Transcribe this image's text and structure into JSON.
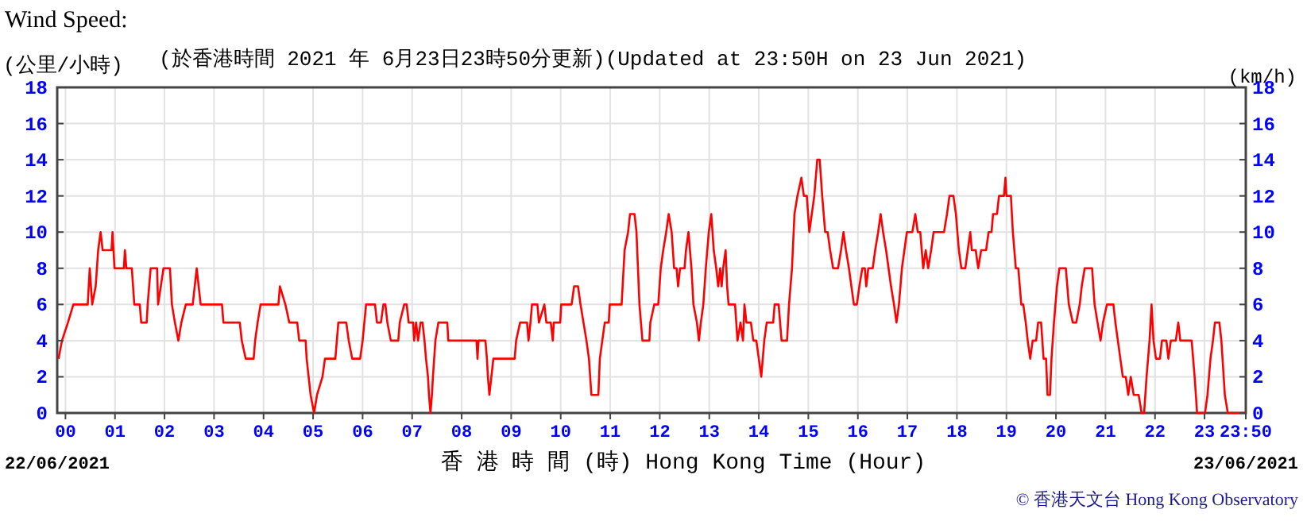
{
  "chart_data": {
    "type": "line",
    "title": "Wind Speed:",
    "subtitle": "(於香港時間 2021 年 6月23日23時50分更新)(Updated at 23:50H on 23 Jun 2021)",
    "ylabel": "(公里/小時)",
    "y2label": "(km/h)",
    "xlabel": "香 港 時 間 (時) Hong Kong Time (Hour)",
    "annotations": [
      "22/06/2021",
      "23/06/2021",
      "© 香港天文台 Hong Kong Observatory"
    ],
    "xlim": [
      -0.1667,
      23.8333
    ],
    "xticks": [
      {
        "value": 0,
        "label": "00"
      },
      {
        "value": 1,
        "label": "01"
      },
      {
        "value": 2,
        "label": "02"
      },
      {
        "value": 3,
        "label": "03"
      },
      {
        "value": 4,
        "label": "04"
      },
      {
        "value": 5,
        "label": "05"
      },
      {
        "value": 6,
        "label": "06"
      },
      {
        "value": 7,
        "label": "07"
      },
      {
        "value": 8,
        "label": "08"
      },
      {
        "value": 9,
        "label": "09"
      },
      {
        "value": 10,
        "label": "10"
      },
      {
        "value": 11,
        "label": "11"
      },
      {
        "value": 12,
        "label": "12"
      },
      {
        "value": 13,
        "label": "13"
      },
      {
        "value": 14,
        "label": "14"
      },
      {
        "value": 15,
        "label": "15"
      },
      {
        "value": 16,
        "label": "16"
      },
      {
        "value": 17,
        "label": "17"
      },
      {
        "value": 18,
        "label": "18"
      },
      {
        "value": 19,
        "label": "19"
      },
      {
        "value": 20,
        "label": "20"
      },
      {
        "value": 21,
        "label": "21"
      },
      {
        "value": 22,
        "label": "22"
      },
      {
        "value": 23,
        "label": "23"
      },
      {
        "value": 23.8333,
        "label": "23:50"
      }
    ],
    "ylim": [
      0,
      18
    ],
    "yticks": [
      0,
      2,
      4,
      6,
      8,
      10,
      12,
      14,
      16,
      18
    ],
    "y2lim": [
      0,
      18
    ],
    "y2ticks": [
      0,
      2,
      4,
      6,
      8,
      10,
      12,
      14,
      16,
      18
    ],
    "grid": true,
    "line_style": "solid",
    "x": [
      -0.14,
      -0.07,
      0.05,
      0.16,
      0.45,
      0.49,
      0.54,
      0.61,
      0.66,
      0.71,
      0.75,
      0.93,
      0.95,
      0.99,
      1.18,
      1.2,
      1.23,
      1.34,
      1.39,
      1.5,
      1.53,
      1.64,
      1.66,
      1.72,
      1.85,
      1.87,
      1.98,
      2.11,
      2.15,
      2.21,
      2.28,
      2.34,
      2.43,
      2.57,
      2.65,
      2.73,
      3.16,
      3.19,
      3.52,
      3.56,
      3.64,
      3.8,
      3.83,
      3.88,
      3.94,
      4.3,
      4.33,
      4.44,
      4.52,
      4.68,
      4.72,
      4.85,
      4.87,
      4.91,
      4.95,
      5.02,
      5.08,
      5.19,
      5.24,
      5.45,
      5.51,
      5.67,
      5.72,
      5.79,
      5.95,
      6.0,
      6.07,
      6.25,
      6.29,
      6.37,
      6.42,
      6.46,
      6.5,
      6.57,
      6.72,
      6.75,
      6.84,
      6.89,
      6.93,
      7.02,
      7.04,
      7.08,
      7.12,
      7.17,
      7.21,
      7.25,
      7.28,
      7.32,
      7.34,
      7.37,
      7.4,
      7.42,
      7.47,
      7.53,
      7.71,
      7.73,
      8.3,
      8.32,
      8.34,
      8.48,
      8.51,
      8.53,
      8.56,
      8.6,
      8.64,
      9.07,
      9.1,
      9.18,
      9.32,
      9.35,
      9.39,
      9.42,
      9.53,
      9.56,
      9.67,
      9.71,
      9.8,
      9.84,
      9.86,
      9.99,
      10.01,
      10.22,
      10.27,
      10.35,
      10.4,
      10.46,
      10.52,
      10.57,
      10.62,
      10.76,
      10.79,
      10.84,
      10.89,
      10.97,
      10.99,
      11.23,
      11.25,
      11.29,
      11.36,
      11.4,
      11.49,
      11.53,
      11.56,
      11.59,
      11.65,
      11.79,
      11.81,
      11.89,
      11.97,
      12.02,
      12.07,
      12.13,
      12.18,
      12.24,
      12.29,
      12.34,
      12.37,
      12.41,
      12.5,
      12.53,
      12.58,
      12.61,
      12.64,
      12.68,
      12.75,
      12.79,
      12.83,
      12.88,
      12.93,
      12.99,
      13.04,
      13.09,
      13.14,
      13.18,
      13.22,
      13.25,
      13.28,
      13.33,
      13.36,
      13.39,
      13.52,
      13.57,
      13.63,
      13.68,
      13.71,
      13.75,
      13.84,
      13.89,
      13.95,
      14.0,
      14.05,
      14.11,
      14.16,
      14.29,
      14.32,
      14.4,
      14.46,
      14.57,
      14.61,
      14.67,
      14.72,
      14.78,
      14.86,
      14.91,
      14.97,
      15.02,
      15.07,
      15.12,
      15.18,
      15.23,
      15.28,
      15.34,
      15.39,
      15.44,
      15.5,
      15.6,
      15.66,
      15.71,
      15.76,
      15.82,
      15.87,
      15.92,
      15.98,
      16.03,
      16.09,
      16.14,
      16.17,
      16.21,
      16.3,
      16.35,
      16.41,
      16.46,
      16.51,
      16.57,
      16.62,
      16.67,
      16.73,
      16.78,
      16.83,
      16.89,
      16.94,
      16.99,
      17.1,
      17.16,
      17.21,
      17.26,
      17.32,
      17.37,
      17.42,
      17.48,
      17.53,
      17.74,
      17.8,
      17.85,
      17.93,
      17.98,
      18.04,
      18.09,
      18.17,
      18.22,
      18.27,
      18.3,
      18.38,
      18.43,
      18.49,
      18.59,
      18.64,
      18.7,
      18.73,
      18.81,
      18.85,
      18.95,
      18.98,
      19.0,
      19.09,
      19.13,
      19.19,
      19.24,
      19.27,
      19.3,
      19.34,
      19.39,
      19.43,
      19.48,
      19.53,
      19.6,
      19.64,
      19.7,
      19.75,
      19.8,
      19.83,
      19.88,
      19.91,
      19.96,
      20.02,
      20.07,
      20.2,
      20.26,
      20.34,
      20.41,
      20.48,
      20.52,
      20.58,
      20.73,
      20.78,
      20.84,
      20.9,
      20.95,
      21.03,
      21.16,
      21.2,
      21.25,
      21.3,
      21.35,
      21.41,
      21.46,
      21.51,
      21.57,
      21.67,
      21.73,
      21.78,
      21.83,
      21.89,
      21.93,
      21.97,
      22.02,
      22.1,
      22.14,
      22.23,
      22.27,
      22.32,
      22.42,
      22.47,
      22.51,
      22.74,
      22.8,
      22.85,
      23.01,
      23.06,
      23.12,
      23.17,
      23.21,
      23.3,
      23.34,
      23.41,
      23.47,
      23.83
    ],
    "series": [
      {
        "color": "#ff0000",
        "values": [
          3,
          4,
          5,
          6,
          6,
          8,
          6,
          7,
          9,
          10,
          9,
          9,
          10,
          8,
          8,
          9,
          8,
          8,
          6,
          6,
          5,
          5,
          6,
          8,
          8,
          6,
          8,
          8,
          6,
          5,
          4,
          5,
          6,
          6,
          8,
          6,
          6,
          5,
          5,
          4,
          3,
          3,
          4,
          5,
          6,
          6,
          7,
          6,
          5,
          5,
          4,
          4,
          3,
          2,
          1,
          0,
          1,
          2,
          3,
          3,
          5,
          5,
          4,
          3,
          3,
          4,
          6,
          6,
          5,
          5,
          6,
          6,
          5,
          4,
          4,
          5,
          6,
          6,
          5,
          5,
          4,
          5,
          4,
          5,
          5,
          4,
          3,
          2,
          1,
          0,
          1,
          2,
          4,
          5,
          5,
          4,
          4,
          3,
          4,
          4,
          3,
          2,
          1,
          2,
          3,
          3,
          4,
          5,
          5,
          4,
          5,
          6,
          6,
          5,
          6,
          5,
          5,
          4,
          5,
          5,
          6,
          6,
          7,
          7,
          6,
          5,
          4,
          3,
          1,
          1,
          3,
          4,
          5,
          5,
          6,
          6,
          7,
          9,
          10,
          11,
          11,
          10,
          8,
          6,
          4,
          4,
          5,
          6,
          6,
          8,
          9,
          10,
          11,
          10,
          8,
          8,
          7,
          8,
          8,
          9,
          10,
          9,
          8,
          6,
          5,
          4,
          5,
          6,
          8,
          10,
          11,
          9,
          8,
          7,
          8,
          7,
          8,
          9,
          7,
          6,
          6,
          4,
          5,
          4,
          6,
          5,
          5,
          4,
          4,
          3,
          2,
          4,
          5,
          5,
          6,
          6,
          4,
          4,
          6,
          8,
          11,
          12,
          13,
          12,
          12,
          10,
          11,
          12,
          14,
          14,
          12,
          10,
          10,
          9,
          8,
          8,
          9,
          10,
          9,
          8,
          7,
          6,
          6,
          7,
          8,
          8,
          7,
          8,
          8,
          9,
          10,
          11,
          10,
          9,
          8,
          7,
          6,
          5,
          6,
          8,
          9,
          10,
          10,
          11,
          10,
          10,
          8,
          9,
          8,
          9,
          10,
          10,
          11,
          12,
          12,
          11,
          9,
          8,
          8,
          9,
          10,
          9,
          9,
          8,
          9,
          9,
          10,
          10,
          11,
          11,
          12,
          12,
          13,
          12,
          12,
          10,
          8,
          8,
          7,
          6,
          6,
          5,
          4,
          3,
          4,
          4,
          5,
          5,
          3,
          3,
          1,
          1,
          3,
          5,
          7,
          8,
          8,
          6,
          5,
          5,
          6,
          7,
          8,
          8,
          6,
          5,
          4,
          5,
          6,
          6,
          5,
          4,
          3,
          2,
          2,
          1,
          2,
          1,
          1,
          0,
          0,
          2,
          4,
          6,
          4,
          3,
          3,
          4,
          4,
          3,
          4,
          4,
          5,
          4,
          4,
          2,
          0,
          0,
          1,
          3,
          4,
          5,
          5,
          4,
          1,
          0,
          0
        ]
      }
    ]
  }
}
